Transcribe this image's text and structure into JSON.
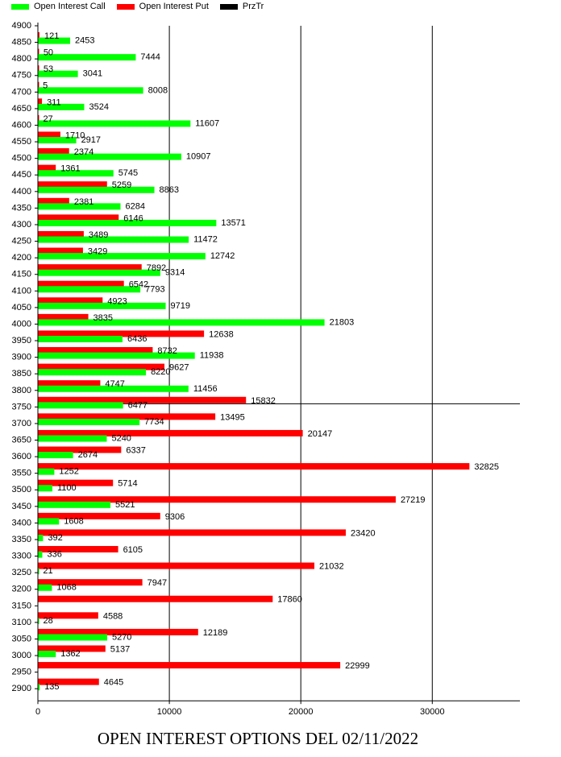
{
  "legend": {
    "call_label": "Open Interest Call",
    "put_label": "Open Interest Put",
    "prz_label": "PrzTr",
    "call_color": "#00ff00",
    "put_color": "#ff0000",
    "prz_color": "#000000"
  },
  "caption": "OPEN INTEREST OPTIONS DEL 02/11/2022",
  "chart_data": {
    "type": "bar",
    "orientation": "horizontal",
    "title": "OPEN INTEREST OPTIONS DEL 02/11/2022",
    "xlim": [
      0,
      37000
    ],
    "xticks": [
      0,
      10000,
      20000,
      30000
    ],
    "grid": "vertical lines at 10000, 20000, 30000",
    "reference_line_at": "3750",
    "legend_position": "top-left",
    "categories": [
      "4900",
      "4850",
      "4800",
      "4750",
      "4700",
      "4650",
      "4600",
      "4550",
      "4500",
      "4450",
      "4400",
      "4350",
      "4300",
      "4250",
      "4200",
      "4150",
      "4100",
      "4050",
      "4000",
      "3950",
      "3900",
      "3850",
      "3800",
      "3750",
      "3700",
      "3650",
      "3600",
      "3550",
      "3500",
      "3450",
      "3400",
      "3350",
      "3300",
      "3250",
      "3200",
      "3150",
      "3100",
      "3050",
      "3000",
      "2950",
      "2900"
    ],
    "series": [
      {
        "name": "Open Interest Call",
        "color": "#00ff00",
        "values": [
          null,
          2453,
          7444,
          3041,
          8008,
          3524,
          11607,
          2917,
          10907,
          5745,
          8863,
          6284,
          13571,
          11472,
          12742,
          9314,
          7793,
          9719,
          21803,
          6436,
          11938,
          8220,
          11456,
          6477,
          7734,
          5240,
          2674,
          1252,
          1100,
          5521,
          1608,
          392,
          336,
          21,
          1068,
          null,
          28,
          5270,
          1362,
          null,
          135
        ]
      },
      {
        "name": "Open Interest Put",
        "color": "#ff0000",
        "values": [
          121,
          50,
          53,
          5,
          311,
          27,
          1710,
          2374,
          1361,
          5259,
          2381,
          6146,
          3489,
          3429,
          7892,
          6542,
          4923,
          3835,
          12638,
          8732,
          9627,
          4747,
          15832,
          13495,
          20147,
          6337,
          32825,
          5714,
          27219,
          9306,
          23420,
          6105,
          21032,
          7947,
          17860,
          4588,
          12189,
          5137,
          22999,
          4645,
          null
        ]
      }
    ]
  }
}
